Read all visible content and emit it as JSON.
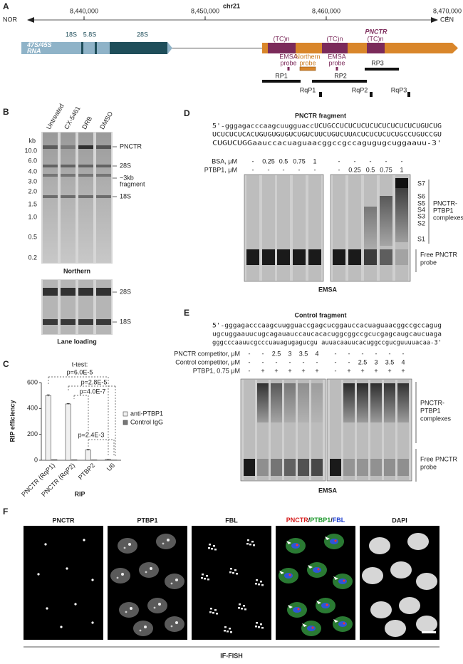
{
  "panel_a": {
    "label": "A",
    "chromosome": "chr21",
    "left_end": "NOR",
    "right_end": "CEN",
    "axis_ticks": [
      {
        "value": 8440000,
        "label": "8,440,000"
      },
      {
        "value": 8450000,
        "label": "8,450,000"
      },
      {
        "value": 8460000,
        "label": "8,460,000"
      },
      {
        "value": 8470000,
        "label": "8,470,000"
      }
    ],
    "rrna_name": [
      "47S/45S",
      "RNA"
    ],
    "rrna_segments": [
      "18S",
      "5.8S",
      "28S"
    ],
    "pnctr_name": "PNCTR",
    "repeats": [
      "(TC)n",
      "(TC)n",
      "(TC)n"
    ],
    "probes": [
      [
        "EMSA",
        "probe"
      ],
      [
        "Northern",
        "probe"
      ],
      [
        "EMSA",
        "probe"
      ]
    ],
    "primers": [
      "RP1",
      "RP2",
      "RP3"
    ],
    "qpcr_primers": [
      "RqP1",
      "RqP2",
      "RqP3"
    ]
  },
  "panel_b": {
    "label": "B",
    "lanes": [
      "Untreated",
      "CX-5461",
      "DRB",
      "DMSO"
    ],
    "size_unit": "kb",
    "ladder": [
      "10.0",
      "6.0",
      "4.0",
      "3.0",
      "2.0",
      "1.5",
      "1.0",
      "0.5",
      "0.2"
    ],
    "bands": [
      "PNCTR",
      "28S",
      "~3kb",
      "fragment",
      "18S"
    ],
    "northern_title": "Northern",
    "loading_bands": [
      "28S",
      "18S"
    ],
    "loading_title": "Lane loading"
  },
  "chart_data": {
    "type": "bar",
    "panel_label": "C",
    "ylabel": "RIP efficiency",
    "xlabel": "RIP",
    "categories": [
      "PNCTR (RqP1)",
      "PNCTR (RqP2)",
      "PTBP2",
      "U6"
    ],
    "series": [
      {
        "name": "anti-PTBP1",
        "color": "#f0f0f0",
        "values": [
          500,
          435,
          80,
          8
        ],
        "errors": [
          6,
          4,
          5,
          1
        ]
      },
      {
        "name": "Control IgG",
        "color": "#777777",
        "values": [
          5,
          4,
          3,
          2
        ]
      }
    ],
    "ylim": [
      0,
      600
    ],
    "yticks": [
      0,
      200,
      400,
      600
    ],
    "test_label": "t-test:",
    "p_values": [
      "p=6.0E-5",
      "p=2.8E-5",
      "p=4.0E-7",
      "p=2.4E-3"
    ]
  },
  "panel_d": {
    "label": "D",
    "title": "PNCTR fragment",
    "sequence": [
      "5'-gggagacccaagcuugguaccUCUGCCUCUCUCUCUCUCUCUCUCUGUCUG",
      "UCUCUCUCACUGUGUGUGUCUGUCUUCUGUCUUACUCUCUCUCUGCCUGUCCGU",
      "CUGUCUGGaauccacuaguaacggccgccagugugcuggaauu-3'"
    ],
    "rows": [
      {
        "name": "BSA, μM",
        "lanes": [
          "-",
          "0.25",
          "0.5",
          "0.75",
          "1",
          "-",
          "-",
          "-",
          "-",
          "-"
        ]
      },
      {
        "name": "PTBP1, μM",
        "lanes": [
          "-",
          "-",
          "-",
          "-",
          "-",
          "-",
          "0.25",
          "0.5",
          "0.75",
          "1"
        ]
      }
    ],
    "complex_bands": [
      "S7",
      "S6",
      "S5",
      "S4",
      "S3",
      "S2",
      "S1"
    ],
    "complex_label": [
      "PNCTR-",
      "PTBP1",
      "complexes"
    ],
    "free_label": [
      "Free PNCTR",
      "probe"
    ],
    "method": "EMSA"
  },
  "panel_e": {
    "label": "E",
    "title": "Control fragment",
    "sequence": [
      "5'-gggagacccaagcuugguaccgagcucggauccacuaguaacggccgccagug",
      "ugcuggaauucugcagauauccaucacacuggcggccgcucgagcaugcaucuaga",
      "gggcccaauucgcccuauagugagucgu auuacaauucacuggccgucguuuuacaa-3'"
    ],
    "rows": [
      {
        "name": "PNCTR competitor, μM",
        "lanes": [
          "-",
          "-",
          "2.5",
          "3",
          "3.5",
          "4",
          "-",
          "-",
          "-",
          "-",
          "-",
          "-"
        ]
      },
      {
        "name": "Control competitor, μM",
        "lanes": [
          "-",
          "-",
          "-",
          "-",
          "-",
          "-",
          "-",
          "-",
          "2.5",
          "3",
          "3.5",
          "4"
        ]
      },
      {
        "name": "PTBP1, 0.75 μM",
        "lanes": [
          "-",
          "+",
          "+",
          "+",
          "+",
          "+",
          "-",
          "+",
          "+",
          "+",
          "+",
          "+"
        ]
      }
    ],
    "complex_label": [
      "PNCTR-",
      "PTBP1",
      "complexes"
    ],
    "free_label": [
      "Free PNCTR",
      "probe"
    ],
    "method": "EMSA"
  },
  "panel_f": {
    "label": "F",
    "channels": [
      "PNCTR",
      "PTBP1",
      "FBL",
      "DAPI"
    ],
    "merge": [
      "PNCTR",
      "/",
      "PTBP1",
      "/",
      "FBL"
    ],
    "method": "IF-FISH"
  }
}
